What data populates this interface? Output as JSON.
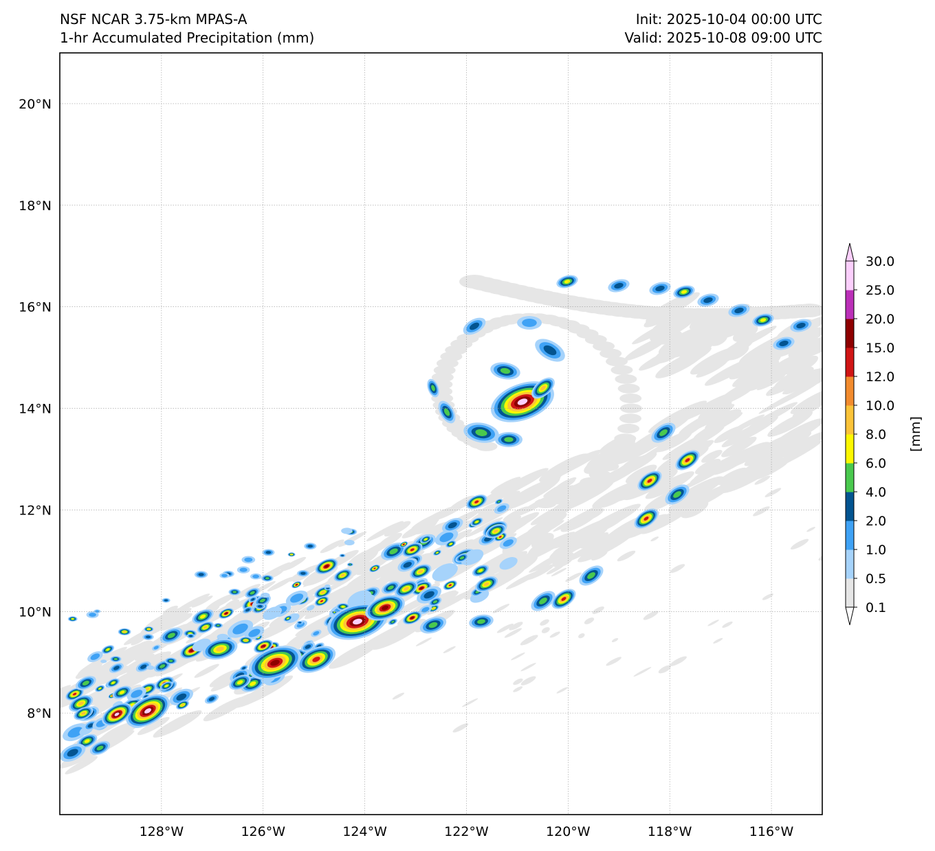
{
  "header": {
    "model": "NSF NCAR 3.75-km MPAS-A",
    "field": "1-hr Accumulated Precipitation (mm)",
    "init": "Init: 2025-10-04 00:00 UTC",
    "valid": "Valid: 2025-10-08 09:00 UTC"
  },
  "map": {
    "lon_range": [
      -130.0,
      -115.0
    ],
    "lat_range": [
      6.0,
      21.0
    ],
    "gridlines": true,
    "lat_ticks": [
      8,
      10,
      12,
      14,
      16,
      18,
      20
    ],
    "lat_tick_labels": [
      "8°N",
      "10°N",
      "12°N",
      "14°N",
      "16°N",
      "18°N",
      "20°N"
    ],
    "lon_ticks": [
      -128,
      -126,
      -124,
      -122,
      -120,
      -118,
      -116
    ],
    "lon_tick_labels": [
      "128°W",
      "126°W",
      "124°W",
      "122°W",
      "120°W",
      "118°W",
      "116°W"
    ],
    "features": [
      {
        "lon": -121.0,
        "lat": 14.0,
        "description": "storm core heavy precipitation"
      },
      {
        "lon": -118.5,
        "lat": 11.7,
        "description": "rainband cell"
      }
    ]
  },
  "colorbar": {
    "unit_label": "[mm]",
    "extend": "both",
    "levels": [
      "0.1",
      "0.5",
      "1.0",
      "2.0",
      "4.0",
      "6.0",
      "8.0",
      "10.0",
      "12.0",
      "15.0",
      "20.0",
      "25.0",
      "30.0"
    ],
    "colors": [
      "#e6e6e6",
      "#a6d3fb",
      "#3fa2f5",
      "#035490",
      "#4ac94e",
      "#fdf700",
      "#fbc339",
      "#f28b2e",
      "#d01515",
      "#8e0000",
      "#bb30b8",
      "#fbcffc"
    ]
  }
}
